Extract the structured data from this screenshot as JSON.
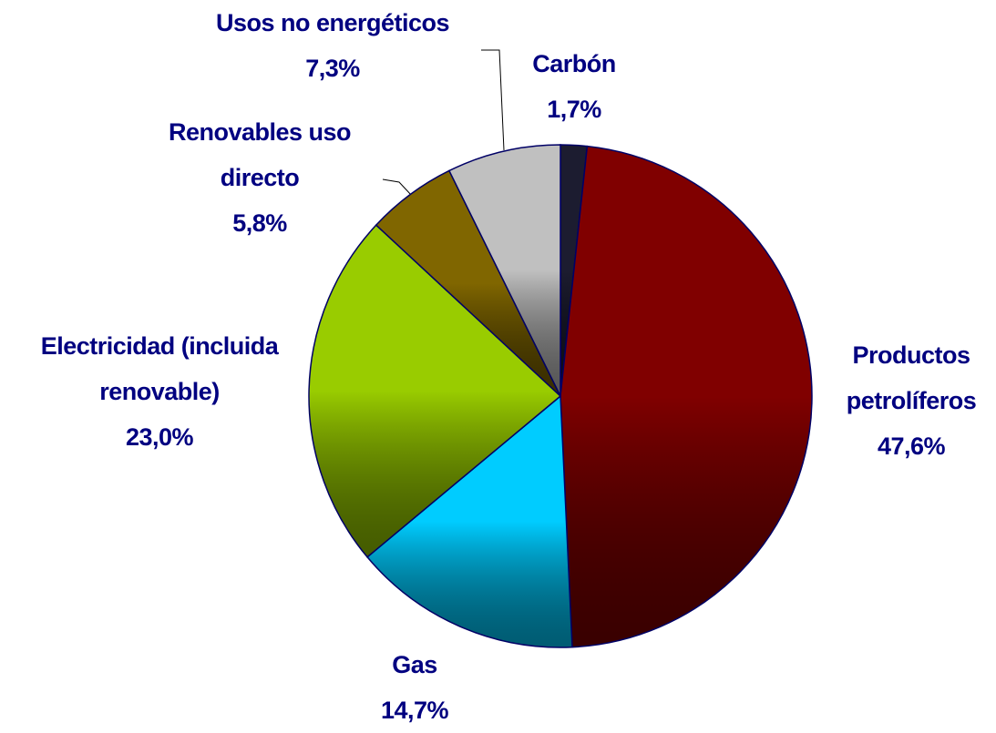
{
  "chart_data": {
    "type": "pie",
    "categories": [
      "Carbón",
      "Productos petrolíferos",
      "Gas",
      "Electricidad (incluida renovable)",
      "Renovables uso directo",
      "Usos no energéticos"
    ],
    "values": [
      1.7,
      47.6,
      14.7,
      23.0,
      5.8,
      7.3
    ],
    "value_labels": [
      "1,7%",
      "47,6%",
      "14,7%",
      "23,0%",
      "5,8%",
      "7,3%"
    ],
    "colors": [
      "#1c1c30",
      "#800000",
      "#00ccff",
      "#99cc00",
      "#806600",
      "#c0c0c0"
    ]
  }
}
